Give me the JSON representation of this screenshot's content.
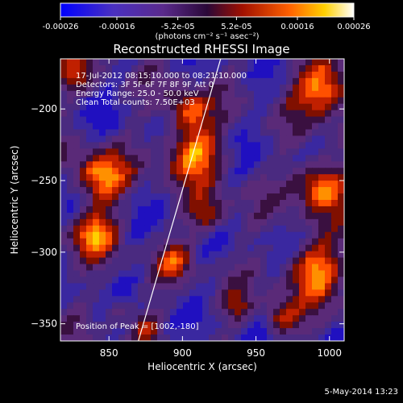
{
  "colorbar": {
    "tick_labels": [
      "-0.00026",
      "-0.00016",
      "-5.2e-05",
      "5.2e-05",
      "0.00016",
      "0.00026"
    ],
    "tick_values": [
      -0.00026,
      -0.00016,
      -5.2e-05,
      5.2e-05,
      0.00016,
      0.00026
    ],
    "range": [
      -0.00026,
      0.00026
    ],
    "units_label": "(photons cm⁻² s⁻¹ asec⁻²)",
    "gradient_colors": [
      "#0000ff",
      "#5a2a8c",
      "#3a1050",
      "#a01000",
      "#ff6000",
      "#ffd000",
      "#ffffff"
    ]
  },
  "chart_data": {
    "type": "heatmap",
    "title": "Reconstructed RHESSI Image",
    "xlabel": "Heliocentric X (arcsec)",
    "ylabel": "Heliocentric Y (arcsec)",
    "xlim": [
      817,
      1010
    ],
    "ylim": [
      -362,
      -165
    ],
    "x_ticks": [
      850,
      900,
      950,
      1000
    ],
    "y_ticks": [
      -200,
      -250,
      -300,
      -350
    ],
    "x_tick_labels": [
      "850",
      "900",
      "950",
      "1000"
    ],
    "y_tick_labels": [
      "−200",
      "−250",
      "−300",
      "−350"
    ],
    "annotations": [
      "17-Jul-2012 08:15:10.000 to 08:21:10.000",
      "Detectors: 3F 5F 6F 7F 8F 9F  Att 0",
      "Energy Range: 25.0 - 50.0 keV",
      "Clean     Total counts: 7.50E+03"
    ],
    "peak_label": "Position of Peak = [1002,-180]",
    "limb_line": [
      [
        870,
        -362
      ],
      [
        926,
        -165
      ]
    ]
  },
  "footer": {
    "date": "5-May-2014 13:23"
  }
}
